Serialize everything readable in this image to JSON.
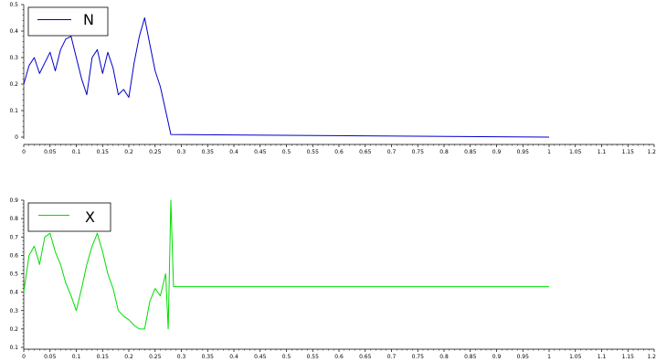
{
  "chart_data": [
    {
      "type": "line",
      "title": "",
      "xlabel": "",
      "ylabel": "",
      "xlim": [
        0,
        1.2
      ],
      "ylim": [
        0,
        0.5
      ],
      "xticks": [
        "0",
        "0.05",
        "0.1",
        "0.15",
        "0.2",
        "0.25",
        "0.3",
        "0.35",
        "0.4",
        "0.45",
        "0.5",
        "0.55",
        "0.6",
        "0.65",
        "0.7",
        "0.75",
        "0.8",
        "0.85",
        "0.9",
        "0.95",
        "1",
        "1.05",
        "1.1",
        "1.15",
        "1.2"
      ],
      "yticks": [
        "0",
        "0.1",
        "0.2",
        "0.3",
        "0.4",
        "0.5"
      ],
      "legend_position": "top-left",
      "series": [
        {
          "name": "N",
          "color": "#0000cc",
          "x": [
            0,
            0.01,
            0.02,
            0.03,
            0.04,
            0.05,
            0.06,
            0.07,
            0.08,
            0.09,
            0.1,
            0.11,
            0.12,
            0.13,
            0.14,
            0.15,
            0.16,
            0.17,
            0.18,
            0.19,
            0.2,
            0.21,
            0.22,
            0.23,
            0.24,
            0.25,
            0.26,
            0.27,
            0.28,
            1.0
          ],
          "y": [
            0.2,
            0.27,
            0.3,
            0.24,
            0.28,
            0.32,
            0.25,
            0.33,
            0.37,
            0.38,
            0.3,
            0.22,
            0.16,
            0.3,
            0.33,
            0.24,
            0.32,
            0.26,
            0.16,
            0.18,
            0.15,
            0.28,
            0.38,
            0.45,
            0.35,
            0.25,
            0.19,
            0.1,
            0.01,
            0.0
          ]
        }
      ]
    },
    {
      "type": "line",
      "title": "",
      "xlabel": "",
      "ylabel": "",
      "xlim": [
        0,
        1.2
      ],
      "ylim": [
        0.1,
        0.9
      ],
      "xticks": [
        "0",
        "0.05",
        "0.1",
        "0.15",
        "0.2",
        "0.25",
        "0.3",
        "0.35",
        "0.4",
        "0.45",
        "0.5",
        "0.55",
        "0.6",
        "0.65",
        "0.7",
        "0.75",
        "0.8",
        "0.85",
        "0.9",
        "0.95",
        "1",
        "1.05",
        "1.1",
        "1.15",
        "1.2"
      ],
      "yticks": [
        "0.1",
        "0.2",
        "0.3",
        "0.4",
        "0.5",
        "0.6",
        "0.7",
        "0.8",
        "0.9"
      ],
      "legend_position": "top-left",
      "series": [
        {
          "name": "X",
          "color": "#00dd00",
          "x": [
            0,
            0.01,
            0.02,
            0.03,
            0.04,
            0.05,
            0.06,
            0.07,
            0.08,
            0.09,
            0.1,
            0.11,
            0.12,
            0.13,
            0.14,
            0.15,
            0.16,
            0.17,
            0.18,
            0.19,
            0.2,
            0.21,
            0.22,
            0.23,
            0.24,
            0.25,
            0.26,
            0.27,
            0.275,
            0.28,
            0.285,
            1.0
          ],
          "y": [
            0.4,
            0.6,
            0.65,
            0.55,
            0.7,
            0.72,
            0.62,
            0.55,
            0.45,
            0.38,
            0.3,
            0.42,
            0.55,
            0.65,
            0.72,
            0.62,
            0.5,
            0.42,
            0.3,
            0.27,
            0.25,
            0.22,
            0.2,
            0.2,
            0.35,
            0.42,
            0.38,
            0.5,
            0.2,
            0.9,
            0.43,
            0.43
          ]
        }
      ]
    }
  ]
}
